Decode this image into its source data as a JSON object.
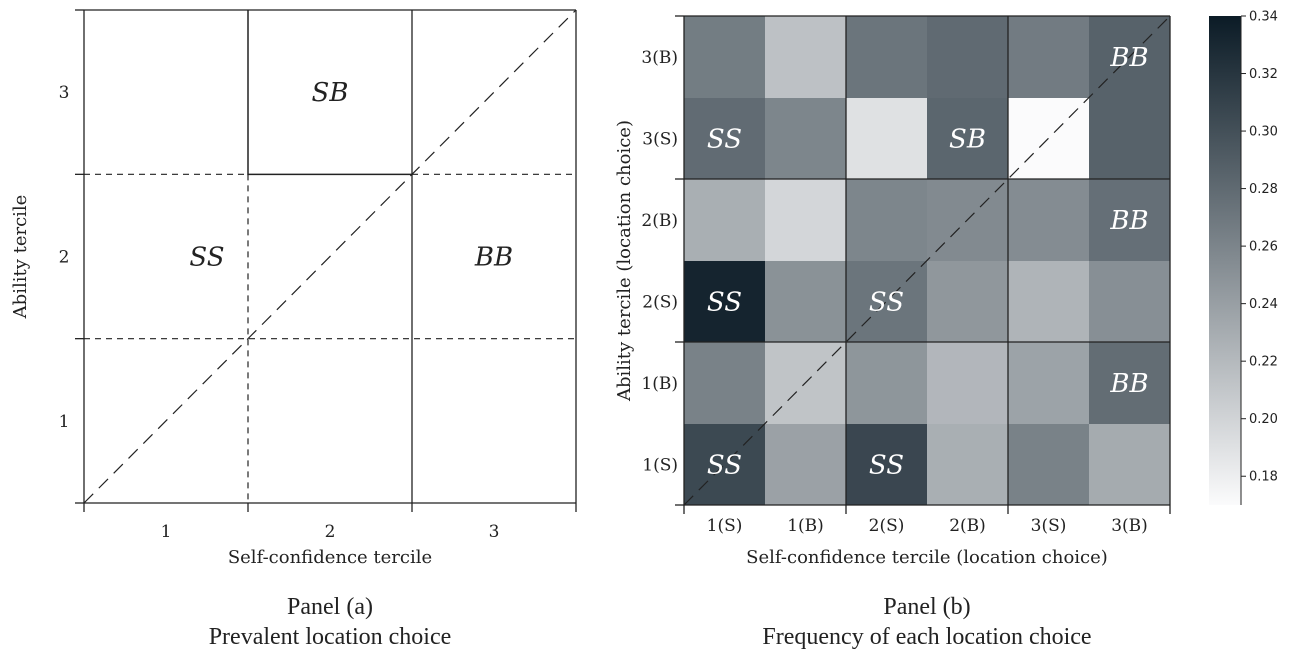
{
  "chart_data": [
    {
      "type": "diagram",
      "panel": "Panel (a)",
      "caption": "Prevalent location choice",
      "xlabel": "Self-confidence tercile",
      "ylabel": "Ability tercile",
      "x_ticks": [
        "1",
        "2",
        "3"
      ],
      "y_ticks": [
        "1",
        "2",
        "3"
      ],
      "regions": [
        {
          "label": "SB",
          "x": [
            2,
            3
          ],
          "y": [
            3,
            4
          ]
        },
        {
          "label": "SS",
          "x": [
            1,
            3
          ],
          "y": [
            2,
            3
          ]
        },
        {
          "label": "BB",
          "x": [
            3,
            4
          ],
          "y": [
            2,
            3
          ]
        }
      ]
    },
    {
      "type": "heatmap",
      "panel": "Panel (b)",
      "caption": "Frequency of each location choice",
      "xlabel": "Self-confidence tercile (location choice)",
      "ylabel": "Ability tercile (location choice)",
      "x_categories": [
        "1(S)",
        "1(B)",
        "2(S)",
        "2(B)",
        "3(S)",
        "3(B)"
      ],
      "y_categories": [
        "1(S)",
        "1(B)",
        "2(S)",
        "2(B)",
        "3(S)",
        "3(B)"
      ],
      "values": [
        [
          0.305,
          0.238,
          0.307,
          0.228,
          0.262,
          0.231
        ],
        [
          0.262,
          0.212,
          0.247,
          0.222,
          0.237,
          0.278
        ],
        [
          0.333,
          0.25,
          0.272,
          0.246,
          0.224,
          0.252
        ],
        [
          0.228,
          0.198,
          0.259,
          0.256,
          0.254,
          0.276
        ],
        [
          0.279,
          0.259,
          0.19,
          0.283,
          0.168,
          0.286
        ],
        [
          0.266,
          0.214,
          0.272,
          0.28,
          0.267,
          0.286
        ]
      ],
      "cell_labels": [
        {
          "text": "SS",
          "col": 0,
          "row": 0
        },
        {
          "text": "SS",
          "col": 2,
          "row": 0
        },
        {
          "text": "BB",
          "col": 5,
          "row": 1
        },
        {
          "text": "SS",
          "col": 0,
          "row": 2
        },
        {
          "text": "SS",
          "col": 2,
          "row": 2
        },
        {
          "text": "BB",
          "col": 5,
          "row": 3
        },
        {
          "text": "SS",
          "col": 0,
          "row": 4
        },
        {
          "text": "SB",
          "col": 3,
          "row": 4
        },
        {
          "text": "BB",
          "col": 5,
          "row": 5
        }
      ],
      "colorbar": {
        "min": 0.17,
        "max": 0.34,
        "ticks": [
          "0.18",
          "0.20",
          "0.22",
          "0.24",
          "0.26",
          "0.28",
          "0.30",
          "0.32",
          "0.34"
        ],
        "colors": [
          "#fbfbfc",
          "#0b1b26"
        ]
      }
    }
  ],
  "captions": {
    "panel_a_title": "Panel (a)",
    "panel_a_subtitle": "Prevalent location choice",
    "panel_b_title": "Panel (b)",
    "panel_b_subtitle": "Frequency of each location choice"
  }
}
